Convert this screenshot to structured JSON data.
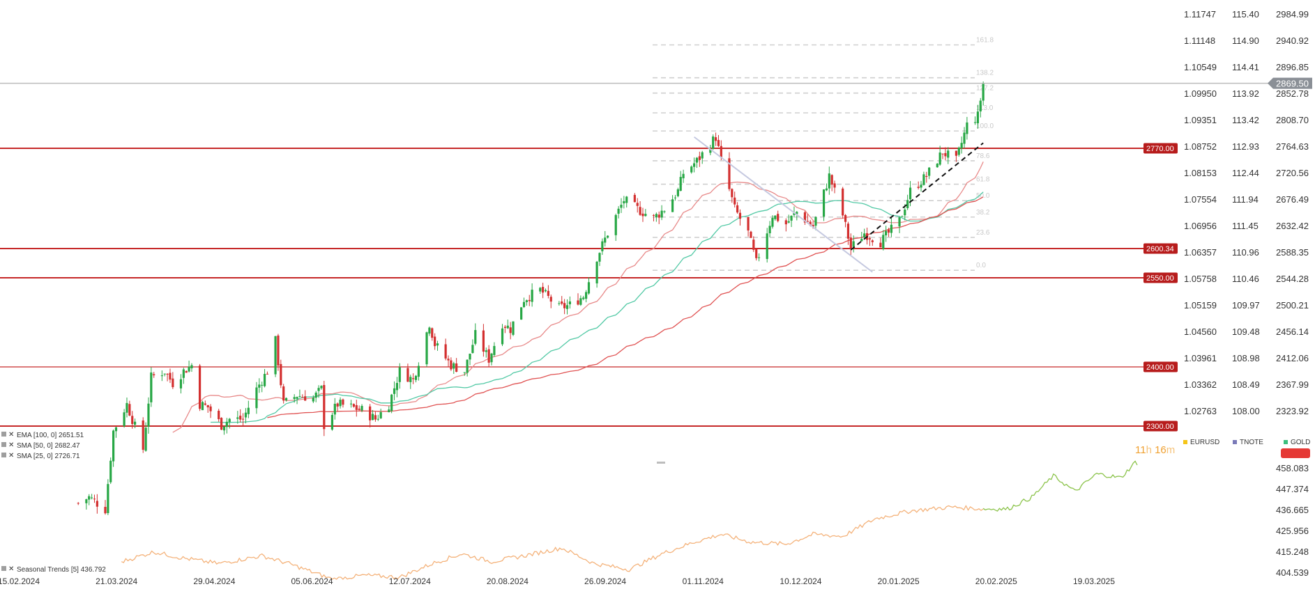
{
  "chart_data": [
    {
      "type": "candlestick",
      "instrument": "GOLD",
      "x_ticks": [
        "15.02.2024",
        "21.03.2024",
        "29.04.2024",
        "05.06.2024",
        "12.07.2024",
        "20.08.2024",
        "26.09.2024",
        "01.11.2024",
        "10.12.2024",
        "20.01.2025",
        "20.02.2025",
        "19.03.2025"
      ],
      "y_ticks_gold": [
        "2984.99",
        "2940.92",
        "2896.85",
        "2852.78",
        "2808.70",
        "2764.63",
        "2720.56",
        "2676.49",
        "2632.42",
        "2588.35",
        "2544.28",
        "2500.21",
        "2456.14",
        "2412.06",
        "2367.99",
        "2323.92"
      ],
      "y_ticks_tnote": [
        "115.40",
        "114.90",
        "114.41",
        "113.92",
        "113.42",
        "112.93",
        "112.44",
        "111.94",
        "111.45",
        "110.96",
        "110.46",
        "109.97",
        "109.48",
        "108.98",
        "108.49",
        "108.00"
      ],
      "y_ticks_eurusd": [
        "1.11747",
        "1.11148",
        "1.10549",
        "1.09950",
        "1.09351",
        "1.08752",
        "1.08153",
        "1.07554",
        "1.06956",
        "1.06357",
        "1.05758",
        "1.05159",
        "1.04560",
        "1.03961",
        "1.03362",
        "1.02763"
      ],
      "ylim": [
        2294,
        3002
      ],
      "current_price": "2869.50",
      "levels": [
        "2770.00",
        "2600.34",
        "2550.00",
        "2400.00",
        "2300.00"
      ],
      "fibonacci": {
        "labels": [
          "161.8",
          "138.2",
          "127.2",
          "113.0",
          "100.0",
          "78.6",
          "61.8",
          "50.0",
          "38.2",
          "23.6",
          "0.0"
        ],
        "low": 2558,
        "high": 2790
      },
      "trendline": {
        "from": [
          "2024-12-19",
          2592
        ],
        "to": [
          "2025-02-06",
          2770
        ]
      },
      "triangle_line": {
        "from": [
          "2024-10-22",
          2780
        ],
        "to": [
          "2024-12-27",
          2555
        ]
      },
      "indicators": [
        {
          "name": "EMA [100, 0]",
          "value": "2651.51",
          "color": "#e05252"
        },
        {
          "name": "SMA [50, 0]",
          "value": "2682.47",
          "color": "#52c9a5"
        },
        {
          "name": "SMA [25, 0]",
          "value": "2726.71",
          "color": "#e57373"
        }
      ],
      "candles_daily_close": [
        {
          "date": "2024-03-08",
          "close": 2170
        },
        {
          "date": "2024-03-12",
          "close": 2180
        },
        {
          "date": "2024-03-18",
          "close": 2160
        },
        {
          "date": "2024-03-21",
          "close": 2290
        },
        {
          "date": "2024-03-26",
          "close": 2335
        },
        {
          "date": "2024-04-01",
          "close": 2260
        },
        {
          "date": "2024-04-04",
          "close": 2380
        },
        {
          "date": "2024-04-09",
          "close": 2390
        },
        {
          "date": "2024-04-12",
          "close": 2370
        },
        {
          "date": "2024-04-16",
          "close": 2390
        },
        {
          "date": "2024-04-19",
          "close": 2400
        },
        {
          "date": "2024-04-22",
          "close": 2335
        },
        {
          "date": "2024-04-25",
          "close": 2330
        },
        {
          "date": "2024-04-30",
          "close": 2300
        },
        {
          "date": "2024-05-03",
          "close": 2310
        },
        {
          "date": "2024-05-08",
          "close": 2310
        },
        {
          "date": "2024-05-13",
          "close": 2360
        },
        {
          "date": "2024-05-17",
          "close": 2390
        },
        {
          "date": "2024-05-20",
          "close": 2440
        },
        {
          "date": "2024-05-23",
          "close": 2335
        },
        {
          "date": "2024-05-28",
          "close": 2350
        },
        {
          "date": "2024-06-03",
          "close": 2345
        },
        {
          "date": "2024-06-06",
          "close": 2360
        },
        {
          "date": "2024-06-07",
          "close": 2300
        },
        {
          "date": "2024-06-12",
          "close": 2335
        },
        {
          "date": "2024-06-17",
          "close": 2330
        },
        {
          "date": "2024-06-21",
          "close": 2325
        },
        {
          "date": "2024-06-26",
          "close": 2310
        },
        {
          "date": "2024-07-01",
          "close": 2335
        },
        {
          "date": "2024-07-05",
          "close": 2390
        },
        {
          "date": "2024-07-10",
          "close": 2375
        },
        {
          "date": "2024-07-16",
          "close": 2470
        },
        {
          "date": "2024-07-18",
          "close": 2435
        },
        {
          "date": "2024-07-24",
          "close": 2400
        },
        {
          "date": "2024-07-29",
          "close": 2390
        },
        {
          "date": "2024-08-02",
          "close": 2450
        },
        {
          "date": "2024-08-07",
          "close": 2410
        },
        {
          "date": "2024-08-12",
          "close": 2470
        },
        {
          "date": "2024-08-15",
          "close": 2460
        },
        {
          "date": "2024-08-20",
          "close": 2510
        },
        {
          "date": "2024-08-26",
          "close": 2525
        },
        {
          "date": "2024-09-02",
          "close": 2495
        },
        {
          "date": "2024-09-06",
          "close": 2500
        },
        {
          "date": "2024-09-11",
          "close": 2515
        },
        {
          "date": "2024-09-16",
          "close": 2580
        },
        {
          "date": "2024-09-20",
          "close": 2620
        },
        {
          "date": "2024-09-26",
          "close": 2675
        },
        {
          "date": "2024-10-01",
          "close": 2660
        },
        {
          "date": "2024-10-07",
          "close": 2645
        },
        {
          "date": "2024-10-11",
          "close": 2660
        },
        {
          "date": "2024-10-16",
          "close": 2690
        },
        {
          "date": "2024-10-18",
          "close": 2720
        },
        {
          "date": "2024-10-23",
          "close": 2740
        },
        {
          "date": "2024-10-30",
          "close": 2780
        },
        {
          "date": "2024-11-01",
          "close": 2740
        },
        {
          "date": "2024-11-06",
          "close": 2660
        },
        {
          "date": "2024-11-11",
          "close": 2620
        },
        {
          "date": "2024-11-14",
          "close": 2570
        },
        {
          "date": "2024-11-20",
          "close": 2650
        },
        {
          "date": "2024-11-25",
          "close": 2635
        },
        {
          "date": "2024-11-29",
          "close": 2655
        },
        {
          "date": "2024-12-05",
          "close": 2630
        },
        {
          "date": "2024-12-11",
          "close": 2715
        },
        {
          "date": "2024-12-16",
          "close": 2650
        },
        {
          "date": "2024-12-19",
          "close": 2595
        },
        {
          "date": "2024-12-24",
          "close": 2620
        },
        {
          "date": "2024-12-30",
          "close": 2605
        },
        {
          "date": "2025-01-06",
          "close": 2640
        },
        {
          "date": "2025-01-10",
          "close": 2690
        },
        {
          "date": "2025-01-16",
          "close": 2715
        },
        {
          "date": "2025-01-22",
          "close": 2755
        },
        {
          "date": "2025-01-27",
          "close": 2740
        },
        {
          "date": "2025-01-31",
          "close": 2800
        },
        {
          "date": "2025-02-04",
          "close": 2815
        },
        {
          "date": "2025-02-06",
          "close": 2869.5
        }
      ]
    },
    {
      "type": "line",
      "title": "Seasonal Trends",
      "param": "[5]",
      "value": "436.792",
      "y_ticks": [
        "458.083",
        "447.374",
        "436.665",
        "425.956",
        "415.248",
        "404.539"
      ],
      "ylim": [
        400,
        461
      ],
      "series_past": [
        {
          "date": "2024-03-24",
          "value": 410
        },
        {
          "date": "2024-04-05",
          "value": 415
        },
        {
          "date": "2024-04-15",
          "value": 412
        },
        {
          "date": "2024-04-29",
          "value": 409
        },
        {
          "date": "2024-05-15",
          "value": 413
        },
        {
          "date": "2024-05-25",
          "value": 409
        },
        {
          "date": "2024-06-10",
          "value": 401
        },
        {
          "date": "2024-06-22",
          "value": 403
        },
        {
          "date": "2024-07-05",
          "value": 402
        },
        {
          "date": "2024-07-17",
          "value": 409
        },
        {
          "date": "2024-07-28",
          "value": 414
        },
        {
          "date": "2024-08-08",
          "value": 410
        },
        {
          "date": "2024-08-20",
          "value": 413
        },
        {
          "date": "2024-09-03",
          "value": 417
        },
        {
          "date": "2024-09-15",
          "value": 409
        },
        {
          "date": "2024-09-28",
          "value": 406
        },
        {
          "date": "2024-10-10",
          "value": 414
        },
        {
          "date": "2024-10-22",
          "value": 420
        },
        {
          "date": "2024-11-01",
          "value": 424
        },
        {
          "date": "2024-11-12",
          "value": 420
        },
        {
          "date": "2024-11-25",
          "value": 419
        },
        {
          "date": "2024-12-05",
          "value": 424
        },
        {
          "date": "2024-12-16",
          "value": 423
        },
        {
          "date": "2024-12-28",
          "value": 432
        },
        {
          "date": "2025-01-10",
          "value": 436
        },
        {
          "date": "2025-01-25",
          "value": 438
        },
        {
          "date": "2025-02-06",
          "value": 437
        }
      ],
      "series_future": [
        {
          "date": "2025-02-06",
          "value": 437
        },
        {
          "date": "2025-02-15",
          "value": 437
        },
        {
          "date": "2025-02-24",
          "value": 443
        },
        {
          "date": "2025-03-04",
          "value": 454
        },
        {
          "date": "2025-03-12",
          "value": 446
        },
        {
          "date": "2025-03-20",
          "value": 455
        },
        {
          "date": "2025-03-29",
          "value": 453
        },
        {
          "date": "2025-04-04",
          "value": 462
        }
      ]
    }
  ],
  "legend": {
    "items": [
      {
        "label": "EURUSD",
        "color": "#f5c518"
      },
      {
        "label": "TNOTE",
        "color": "#7a7ab8"
      },
      {
        "label": "GOLD",
        "color": "#3bbf7e"
      }
    ]
  },
  "countdown": {
    "hours": "11",
    "h_unit": "h",
    "minutes": "16",
    "m_unit": "m"
  },
  "colors": {
    "bull": "#27a745",
    "bear": "#d32f2f",
    "level": "#c62828",
    "level_label_bg": "#b71c1c",
    "fib": "#cfcfcf",
    "seasonal_past": "#f4b27a",
    "seasonal_future": "#8bc34a"
  }
}
